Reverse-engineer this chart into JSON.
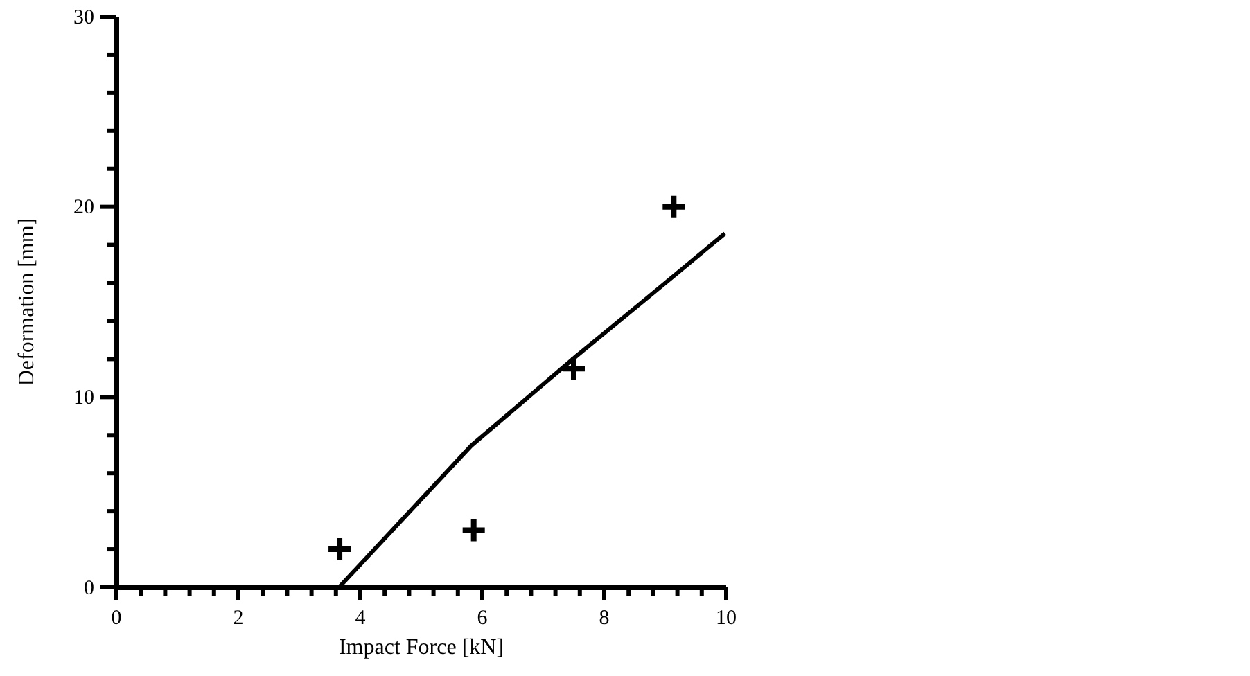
{
  "chart_data": {
    "type": "scatter",
    "xlabel": "Impact Force [kN]",
    "ylabel": "Deformation [mm]",
    "xlim": [
      0,
      10
    ],
    "ylim": [
      0,
      30
    ],
    "xticks": [
      0,
      {
        "value": 0.4,
        "label": null
      },
      {
        "value": 0.8,
        "label": null
      },
      {
        "value": 1.2,
        "label": null
      },
      {
        "value": 1.6,
        "label": null
      },
      2,
      {
        "value": 2.4,
        "label": null
      },
      {
        "value": 2.8,
        "label": null
      },
      {
        "value": 3.2,
        "label": null
      },
      {
        "value": 3.6,
        "label": null
      },
      4,
      {
        "value": 4.4,
        "label": null
      },
      {
        "value": 4.8,
        "label": null
      },
      {
        "value": 5.2,
        "label": null
      },
      {
        "value": 5.6,
        "label": null
      },
      6,
      {
        "value": 6.4,
        "label": null
      },
      {
        "value": 6.8,
        "label": null
      },
      {
        "value": 7.2,
        "label": null
      },
      {
        "value": 7.6,
        "label": null
      },
      8,
      {
        "value": 8.4,
        "label": null
      },
      {
        "value": 8.8,
        "label": null
      },
      {
        "value": 9.2,
        "label": null
      },
      {
        "value": 9.6,
        "label": null
      },
      10
    ],
    "yticks": [
      0,
      {
        "value": 2,
        "label": null
      },
      {
        "value": 4,
        "label": null
      },
      {
        "value": 6,
        "label": null
      },
      {
        "value": 8,
        "label": null
      },
      10,
      {
        "value": 12,
        "label": null
      },
      {
        "value": 14,
        "label": null
      },
      {
        "value": 16,
        "label": null
      },
      {
        "value": 18,
        "label": null
      },
      20,
      {
        "value": 22,
        "label": null
      },
      {
        "value": 24,
        "label": null
      },
      {
        "value": 26,
        "label": null
      },
      {
        "value": 28,
        "label": null
      },
      30
    ],
    "grid": false,
    "series": [
      {
        "color": "#000000",
        "marker": "cross",
        "x": [
          3.66,
          5.86,
          7.5,
          9.14
        ],
        "values": [
          2,
          3,
          11.5,
          20
        ]
      },
      {
        "type": "line",
        "color": "#000000",
        "marker": "none",
        "line_style": "solid",
        "x": [
          3.65,
          5.82,
          7.56,
          8.7,
          9.98
        ],
        "values": [
          0,
          7.45,
          12.2,
          15.2,
          18.6
        ]
      }
    ]
  }
}
